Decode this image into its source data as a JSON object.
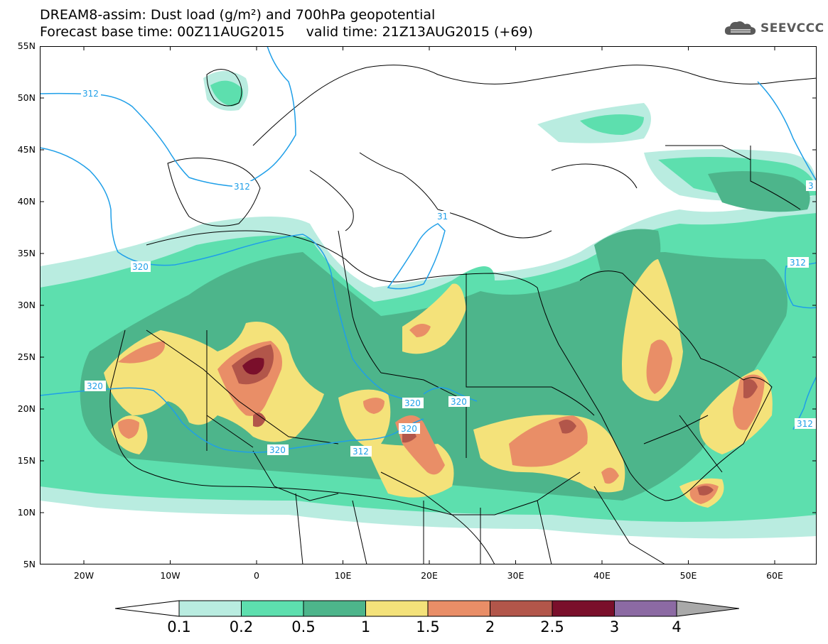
{
  "header": {
    "title_line1": "DREAM8-assim: Dust load (g/m²) and 700hPa geopotential",
    "title_line2": "Forecast base time: 00Z11AUG2015     valid time: 21Z13AUG2015 (+69)",
    "logo_text": "SEEVCCC"
  },
  "axes": {
    "lat_labels": [
      "55N",
      "50N",
      "45N",
      "40N",
      "35N",
      "30N",
      "25N",
      "20N",
      "15N",
      "10N",
      "5N"
    ],
    "lon_labels": [
      "20W",
      "10W",
      "0",
      "10E",
      "20E",
      "30E",
      "40E",
      "50E",
      "60E"
    ]
  },
  "contours": {
    "labels": [
      "312",
      "312",
      "31",
      "320",
      "320",
      "320",
      "320",
      "320",
      "320",
      "312",
      "312",
      "3"
    ]
  },
  "colorbar": {
    "labels": [
      "0.1",
      "0.2",
      "0.5",
      "1",
      "1.5",
      "2",
      "2.5",
      "3",
      "4"
    ],
    "colors": [
      "#ffffff",
      "#b9ece0",
      "#5ddfae",
      "#4db58b",
      "#f4e27a",
      "#e98e67",
      "#b2564a",
      "#7a0f2b",
      "#8c6aa3",
      "#a9a9a9"
    ]
  },
  "map_colors": {
    "land": "#ffffff",
    "borders": "#000000",
    "contour_line": "#1f9fe8"
  }
}
